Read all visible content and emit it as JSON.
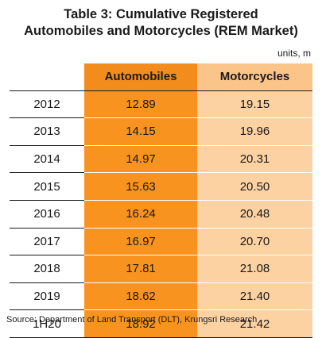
{
  "title_line1": "Table 3: Cumulative Registered",
  "title_line2": "Automobiles and Motorcycles (REM Market)",
  "units": "units, m",
  "source": "Source: Department of Land Transport (DLT), Krungsri Research",
  "colors": {
    "automobiles_header": "#f28c1c",
    "automobiles_cells": "#f7931e",
    "motorcycles_header": "#fbc58a",
    "motorcycles_cells": "#fcd2a2"
  },
  "chart_data": {
    "type": "table",
    "title": "Table 3: Cumulative Registered Automobiles and Motorcycles (REM Market)",
    "columns": [
      "",
      "Automobiles",
      "Motorcycles"
    ],
    "rows": [
      {
        "period": "2012",
        "automobiles": "12.89",
        "motorcycles": "19.15"
      },
      {
        "period": "2013",
        "automobiles": "14.15",
        "motorcycles": "19.96"
      },
      {
        "period": "2014",
        "automobiles": "14.97",
        "motorcycles": "20.31"
      },
      {
        "period": "2015",
        "automobiles": "15.63",
        "motorcycles": "20.50"
      },
      {
        "period": "2016",
        "automobiles": "16.24",
        "motorcycles": "20.48"
      },
      {
        "period": "2017",
        "automobiles": "16.97",
        "motorcycles": "20.70"
      },
      {
        "period": "2018",
        "automobiles": "17.81",
        "motorcycles": "21.08"
      },
      {
        "period": "2019",
        "automobiles": "18.62",
        "motorcycles": "21.40"
      },
      {
        "period": "1H20",
        "automobiles": "18.92",
        "motorcycles": "21.42"
      }
    ]
  }
}
